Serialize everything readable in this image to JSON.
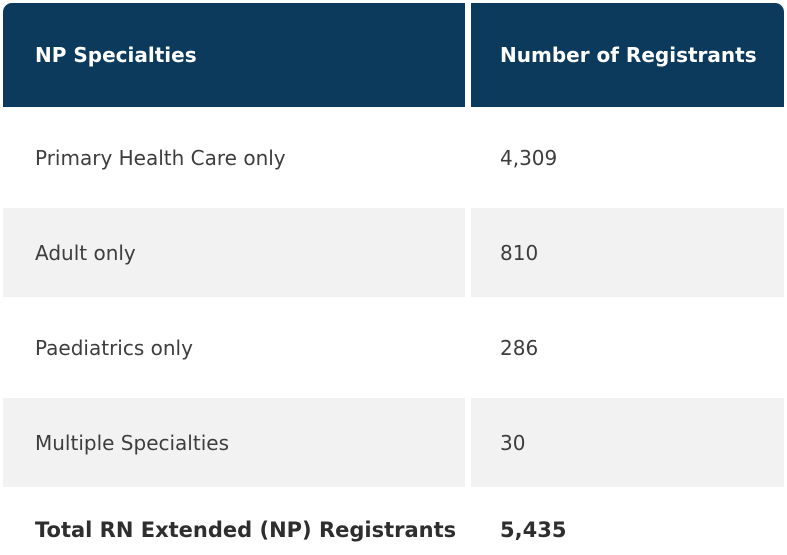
{
  "colors": {
    "header_bg": "#0c3a5d",
    "header_text": "#ffffff",
    "row_alt_bg": "#f2f2f2",
    "row_bg": "#ffffff",
    "body_text": "#3d3d3d",
    "total_text": "#2e2e2e"
  },
  "table": {
    "columns": [
      "NP Specialties",
      "Number of Registrants"
    ],
    "rows": [
      {
        "label": "Primary Health Care only",
        "value": "4,309"
      },
      {
        "label": "Adult only",
        "value": "810"
      },
      {
        "label": "Paediatrics only",
        "value": "286"
      },
      {
        "label": "Multiple Specialties",
        "value": "30"
      }
    ],
    "total": {
      "label": "Total RN Extended (NP) Registrants",
      "value": "5,435"
    }
  },
  "chart_data": {
    "type": "table",
    "title": "",
    "columns": [
      "NP Specialties",
      "Number of Registrants"
    ],
    "rows": [
      [
        "Primary Health Care only",
        4309
      ],
      [
        "Adult only",
        810
      ],
      [
        "Paediatrics only",
        286
      ],
      [
        "Multiple Specialties",
        30
      ]
    ],
    "total_row": [
      "Total RN Extended (NP) Registrants",
      5435
    ],
    "layout": "two-column data table, navy header, zebra striping (white / light gray), bold total row, white gutter between columns"
  }
}
